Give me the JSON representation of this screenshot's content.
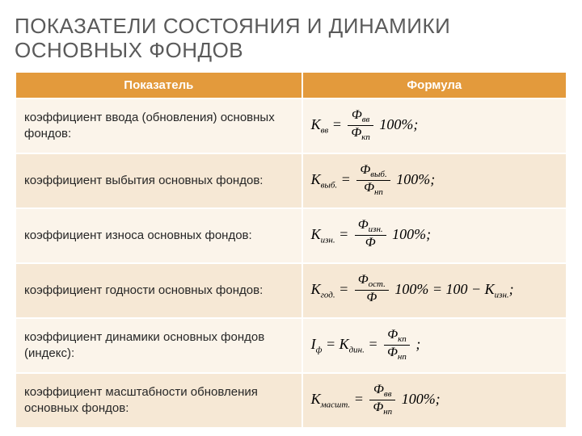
{
  "slide": {
    "title": "ПОКАЗАТЕЛИ СОСТОЯНИЯ И ДИНАМИКИ ОСНОВНЫХ ФОНДОВ"
  },
  "table": {
    "header": {
      "indicator": "Показатель",
      "formula": "Формула"
    },
    "rows": [
      {
        "indicator": "коэффициент ввода (обновления) основных фондов:",
        "formula": {
          "lhs_main": "K",
          "lhs_sub": "вв",
          "num_main": "Ф",
          "num_sub": "вв",
          "den_main": "Ф",
          "den_sub": "кп",
          "suffix": "100%;",
          "extra": ""
        }
      },
      {
        "indicator": "коэффициент выбытия основных фондов:",
        "formula": {
          "lhs_main": "K",
          "lhs_sub": "выб.",
          "num_main": "Ф",
          "num_sub": "выб.",
          "den_main": "Ф",
          "den_sub": "нп",
          "suffix": "100%;",
          "extra": ""
        }
      },
      {
        "indicator": "коэффициент износа основных фондов:",
        "formula": {
          "lhs_main": "K",
          "lhs_sub": "изн.",
          "num_main": "Ф",
          "num_sub": "изн.",
          "den_main": "Ф",
          "den_sub": "",
          "suffix": "100%;",
          "extra": ""
        }
      },
      {
        "indicator": "коэффициент годности основных фондов:",
        "formula": {
          "lhs_main": "K",
          "lhs_sub": "год.",
          "num_main": "Ф",
          "num_sub": "ост.",
          "den_main": "Ф",
          "den_sub": "",
          "suffix": "100% = 100 − ",
          "extra_main": "K",
          "extra_sub": "изн.",
          "extra_tail": ";"
        }
      },
      {
        "indicator": "коэффициент динамики основных фондов (индекс):",
        "formula": {
          "lhs_main": "I",
          "lhs_sub": "ф",
          "mid_main": "K",
          "mid_sub": "дин.",
          "num_main": "Ф",
          "num_sub": "кп",
          "den_main": "Ф",
          "den_sub": "нп",
          "suffix": ";",
          "no100": true
        }
      },
      {
        "indicator": "коэффициент масштабности обновления основных фондов:",
        "formula": {
          "lhs_main": "K",
          "lhs_sub": "масшт.",
          "num_main": "Ф",
          "num_sub": "вв",
          "den_main": "Ф",
          "den_sub": "нп",
          "suffix": "100%;",
          "extra": ""
        }
      }
    ]
  },
  "colors": {
    "header_bg": "#e39a3c",
    "row_odd": "#fbf4ea",
    "row_even": "#f6e8d5",
    "title_color": "#5a5a5a"
  }
}
